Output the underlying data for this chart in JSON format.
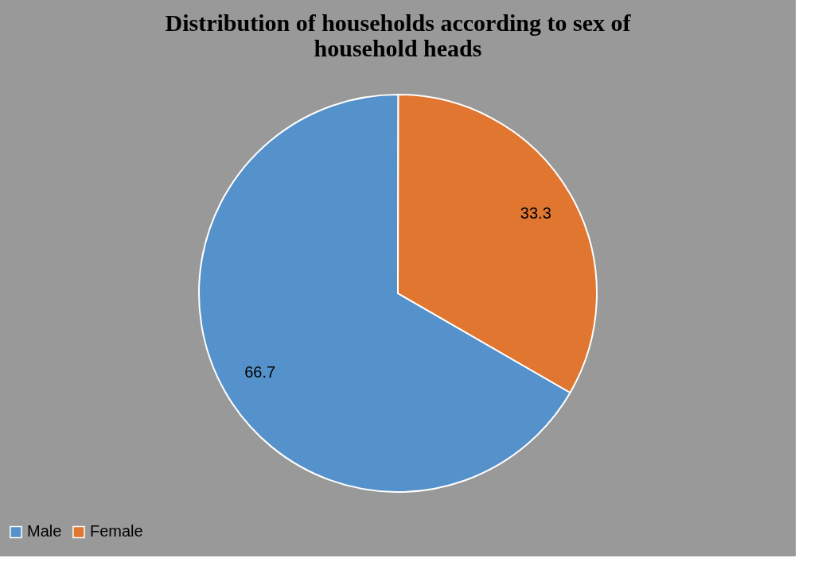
{
  "chart_data": {
    "type": "pie",
    "title": "Distribution of households according to sex of household heads",
    "categories": [
      "Male",
      "Female"
    ],
    "values": [
      66.7,
      33.3
    ],
    "colors": [
      "#5592cb",
      "#e07630"
    ],
    "data_labels": true,
    "legend": "bottom"
  }
}
